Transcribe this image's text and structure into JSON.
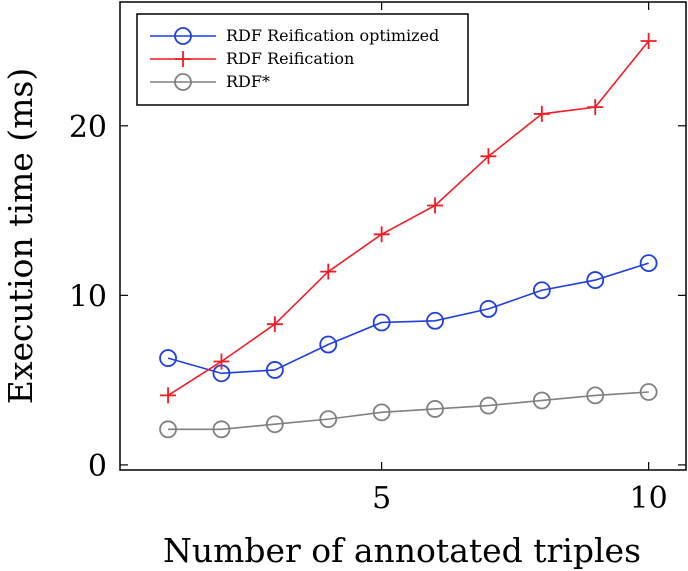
{
  "chart_data": {
    "type": "line",
    "xlabel": "Number of annotated triples",
    "ylabel": "Execution time (ms)",
    "xlim": [
      0.1,
      10.7
    ],
    "ylim": [
      -0.3,
      27.3
    ],
    "xticks": [
      5,
      10
    ],
    "yticks": [
      0,
      10,
      20
    ],
    "grid": false,
    "legend_position": "top-left",
    "x": [
      1,
      2,
      3,
      4,
      5,
      6,
      7,
      8,
      9,
      10
    ],
    "series": [
      {
        "name": "RDF Reification optimized",
        "color": "#1f3fe0",
        "marker": "circle",
        "values": [
          6.3,
          5.4,
          5.6,
          7.1,
          8.4,
          8.5,
          9.2,
          10.3,
          10.9,
          11.9
        ]
      },
      {
        "name": "RDF Reification",
        "color": "#ee1c25",
        "marker": "plus",
        "values": [
          4.1,
          6.1,
          8.3,
          11.4,
          13.6,
          15.3,
          18.2,
          20.7,
          21.1,
          25.0
        ]
      },
      {
        "name": "RDF*",
        "color": "#808080",
        "marker": "circle",
        "values": [
          2.1,
          2.1,
          2.4,
          2.7,
          3.1,
          3.3,
          3.5,
          3.8,
          4.1,
          4.3
        ]
      }
    ]
  }
}
